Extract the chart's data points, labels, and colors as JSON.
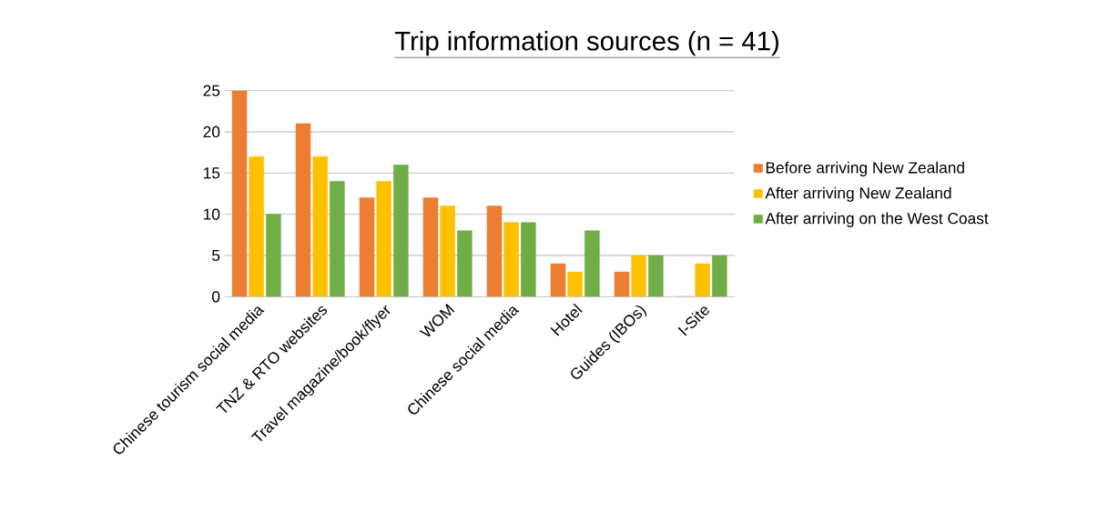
{
  "chart_data": {
    "type": "bar",
    "title": "Trip information sources (n = 41)",
    "categories": [
      "Chinese tourism social media",
      "TNZ & RTO websites",
      "Travel magazine/book/flyer",
      "WOM",
      "Chinese social media",
      "Hotel",
      "Guides (IBOs)",
      "I-Site"
    ],
    "series": [
      {
        "name": "Before arriving New Zealand",
        "color": "#ed7d31",
        "values": [
          25,
          21,
          12,
          12,
          11,
          4,
          3,
          0
        ]
      },
      {
        "name": "After arriving New Zealand",
        "color": "#ffc000",
        "values": [
          17,
          17,
          14,
          11,
          9,
          3,
          5,
          4
        ]
      },
      {
        "name": "After arriving on the West Coast",
        "color": "#70ad47",
        "values": [
          10,
          14,
          16,
          8,
          9,
          8,
          5,
          5
        ]
      }
    ],
    "ylim": [
      0,
      25
    ],
    "yticks": [
      0,
      5,
      10,
      15,
      20,
      25
    ],
    "grid": "y",
    "legend": "right"
  }
}
